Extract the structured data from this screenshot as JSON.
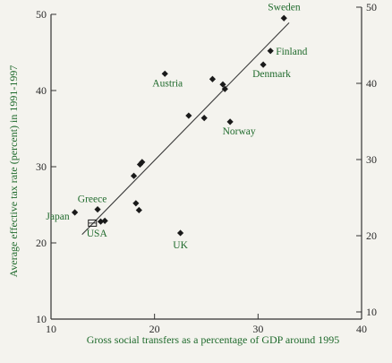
{
  "chart_data": {
    "type": "scatter",
    "xlabel": "Gross social transfers as a percentage of GDP around 1995",
    "ylabel": "Average effective tax rate (percent) in 1991-1997",
    "xlim": [
      10,
      40
    ],
    "ylim": [
      10,
      50
    ],
    "x_ticks": [
      "10",
      "20",
      "30",
      "40"
    ],
    "y_ticks": [
      "10",
      "20",
      "30",
      "40",
      "50"
    ],
    "right_y_ticks": [
      "10",
      "20",
      "30",
      "40",
      "50"
    ],
    "grid": false,
    "points": [
      {
        "label": "Sweden",
        "x": 32.5,
        "y": 49.5
      },
      {
        "label": "Finland",
        "x": 31.2,
        "y": 45.2
      },
      {
        "label": "Denmark",
        "x": 30.5,
        "y": 43.4
      },
      {
        "label": "Austria",
        "x": 21.0,
        "y": 42.2
      },
      {
        "label": "",
        "x": 25.6,
        "y": 41.5
      },
      {
        "label": "",
        "x": 26.6,
        "y": 40.8
      },
      {
        "label": "",
        "x": 26.8,
        "y": 40.2
      },
      {
        "label": "",
        "x": 23.3,
        "y": 36.7
      },
      {
        "label": "",
        "x": 24.8,
        "y": 36.4
      },
      {
        "label": "Norway",
        "x": 27.3,
        "y": 35.9
      },
      {
        "label": "",
        "x": 18.8,
        "y": 30.6
      },
      {
        "label": "",
        "x": 18.6,
        "y": 30.3
      },
      {
        "label": "",
        "x": 18.0,
        "y": 28.8
      },
      {
        "label": "",
        "x": 18.2,
        "y": 25.2
      },
      {
        "label": "",
        "x": 18.5,
        "y": 24.3
      },
      {
        "label": "Greece",
        "x": 14.5,
        "y": 24.4
      },
      {
        "label": "Japan",
        "x": 12.3,
        "y": 24.0
      },
      {
        "label": "",
        "x": 14.8,
        "y": 22.8
      },
      {
        "label": "",
        "x": 15.2,
        "y": 22.9
      },
      {
        "label": "UK",
        "x": 22.5,
        "y": 21.3
      }
    ],
    "usa_point": {
      "label": "USA",
      "x": 14.0,
      "y": 22.6
    },
    "trend_line": {
      "x": [
        13.0,
        33.0
      ],
      "y": [
        21.1,
        48.9
      ]
    },
    "colors": {
      "points": "#1a1a1a",
      "labels": "#1f6a2c",
      "axes": "#333333"
    }
  }
}
